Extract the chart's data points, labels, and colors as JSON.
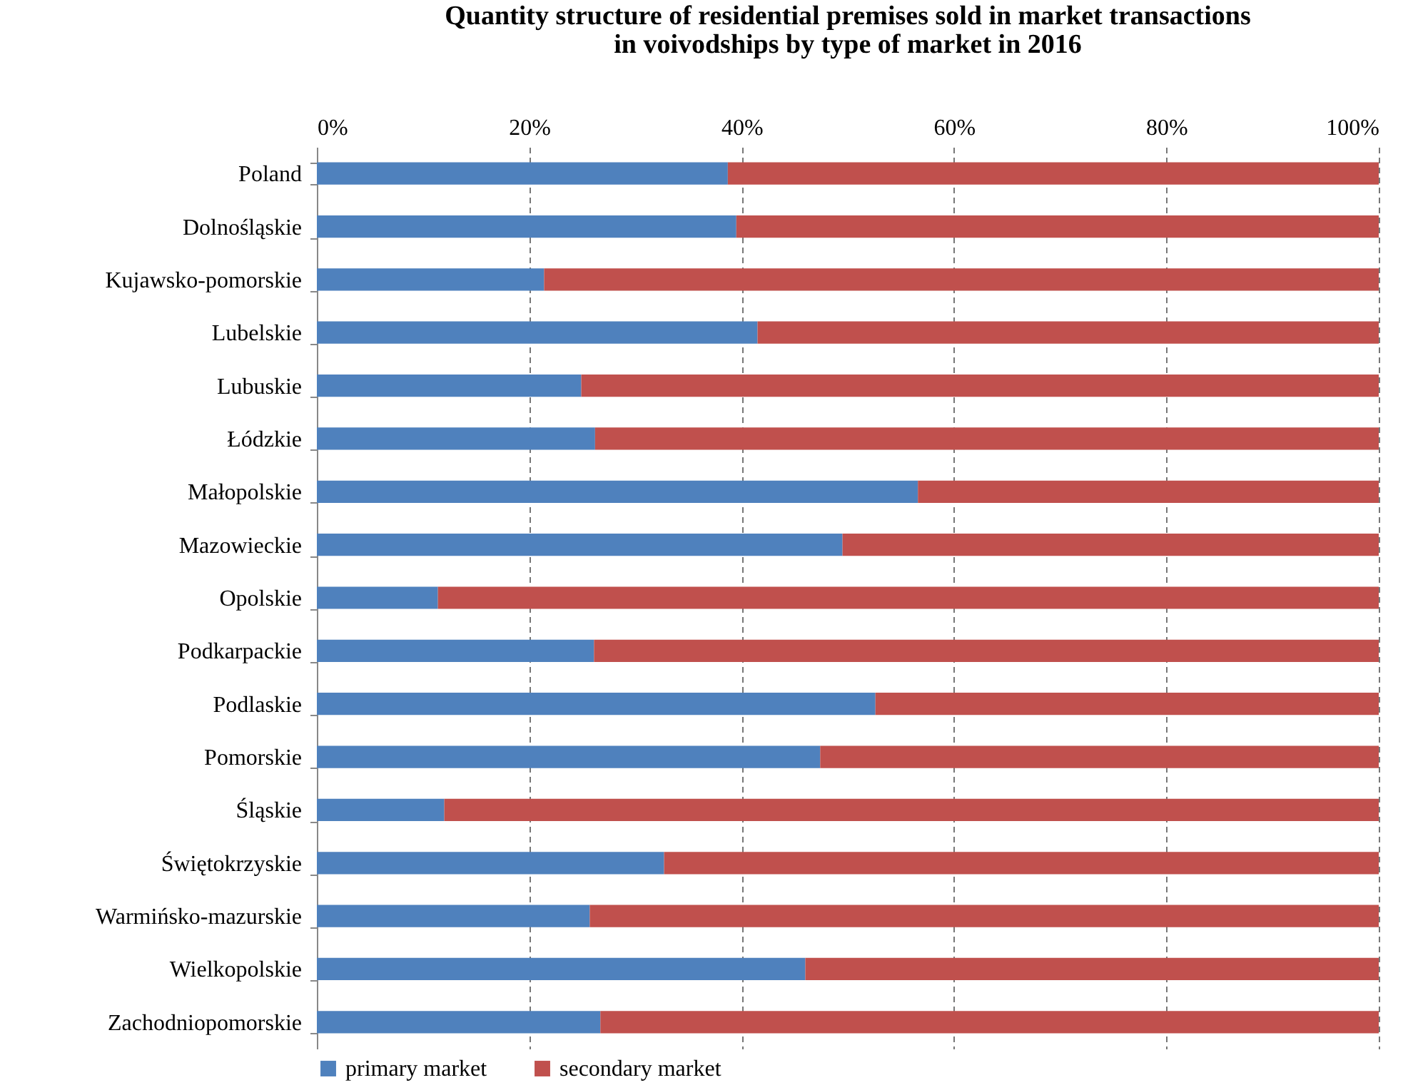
{
  "chart_data": {
    "type": "bar",
    "orientation": "horizontal",
    "stacked": true,
    "title": "Quantity structure of residential premises sold in market transactions\nin voivodships by type of market in 2016",
    "categories": [
      "Poland",
      "Dolnośląskie",
      "Kujawsko-pomorskie",
      "Lubelskie",
      "Lubuskie",
      "Łódzkie",
      "Małopolskie",
      "Mazowieckie",
      "Opolskie",
      "Podkarpackie",
      "Podlaskie",
      "Pomorskie",
      "Śląskie",
      "Świętokrzyskie",
      "Warmińsko-mazurskie",
      "Wielkopolskie",
      "Zachodniopomorskie"
    ],
    "series": [
      {
        "name": "primary market",
        "color": "#4f81bd",
        "values": [
          38.7,
          39.5,
          21.4,
          41.5,
          24.9,
          26.2,
          56.6,
          49.5,
          11.4,
          26.1,
          52.6,
          47.4,
          12.0,
          32.7,
          25.7,
          46.0,
          26.7
        ]
      },
      {
        "name": "secondary market",
        "color": "#c0504d",
        "values": [
          61.3,
          60.5,
          78.6,
          58.5,
          75.1,
          73.8,
          43.4,
          50.5,
          88.6,
          73.9,
          47.4,
          52.6,
          88.0,
          67.3,
          74.3,
          54.0,
          73.3
        ]
      }
    ],
    "xlim": [
      0,
      100
    ],
    "xticks": [
      {
        "value": 0,
        "label": "0%"
      },
      {
        "value": 20,
        "label": "20%"
      },
      {
        "value": 40,
        "label": "40%"
      },
      {
        "value": 60,
        "label": "60%"
      },
      {
        "value": 80,
        "label": "80%"
      },
      {
        "value": 100,
        "label": "100%"
      }
    ],
    "grid": "x",
    "legend": "bottom"
  }
}
